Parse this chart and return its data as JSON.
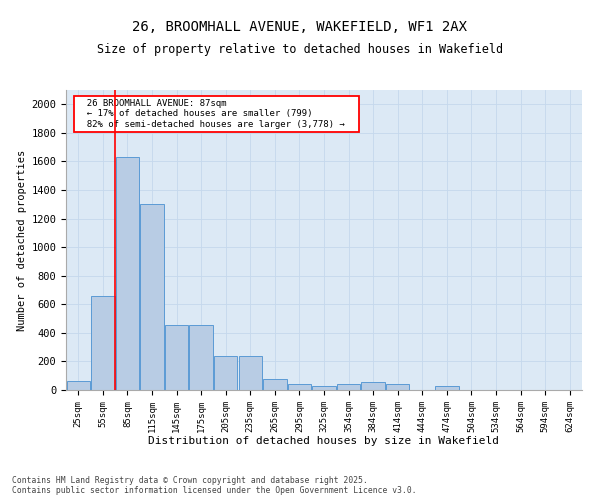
{
  "title_line1": "26, BROOMHALL AVENUE, WAKEFIELD, WF1 2AX",
  "title_line2": "Size of property relative to detached houses in Wakefield",
  "xlabel": "Distribution of detached houses by size in Wakefield",
  "ylabel": "Number of detached properties",
  "annotation_line1": "26 BROOMHALL AVENUE: 87sqm",
  "annotation_line2": "← 17% of detached houses are smaller (799)",
  "annotation_line3": "82% of semi-detached houses are larger (3,778) →",
  "categories": [
    "25sqm",
    "55sqm",
    "85sqm",
    "115sqm",
    "145sqm",
    "175sqm",
    "205sqm",
    "235sqm",
    "265sqm",
    "295sqm",
    "325sqm",
    "354sqm",
    "384sqm",
    "414sqm",
    "444sqm",
    "474sqm",
    "504sqm",
    "534sqm",
    "564sqm",
    "594sqm",
    "624sqm"
  ],
  "values": [
    65,
    660,
    1630,
    1300,
    455,
    455,
    235,
    235,
    75,
    45,
    25,
    45,
    55,
    40,
    0,
    25,
    0,
    0,
    0,
    0,
    0
  ],
  "bar_color": "#b8cce4",
  "bar_edge_color": "#5b9bd5",
  "marker_color": "#ff0000",
  "ylim": [
    0,
    2100
  ],
  "yticks": [
    0,
    200,
    400,
    600,
    800,
    1000,
    1200,
    1400,
    1600,
    1800,
    2000
  ],
  "grid_color": "#c5d8ec",
  "background_color": "#dce9f5",
  "footer_line1": "Contains HM Land Registry data © Crown copyright and database right 2025.",
  "footer_line2": "Contains public sector information licensed under the Open Government Licence v3.0."
}
